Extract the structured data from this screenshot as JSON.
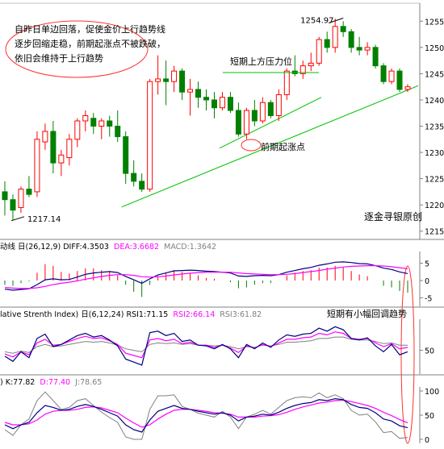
{
  "chart_data": {
    "type": "candlestick",
    "symbol_price_axis": {
      "ticks": [
        "1255.0",
        "1250.0",
        "1245.0",
        "1240.0",
        "1235.0",
        "1230.0",
        "1225.0",
        "1220.0",
        "1215.0"
      ],
      "ylim": [
        1214.5,
        1257.5
      ]
    },
    "candles": [
      {
        "o": 1222.5,
        "h": 1224.5,
        "l": 1218.0,
        "c": 1221.0
      },
      {
        "o": 1221.0,
        "h": 1222.0,
        "l": 1217.1,
        "c": 1219.0
      },
      {
        "o": 1219.5,
        "h": 1223.5,
        "l": 1218.5,
        "c": 1223.0
      },
      {
        "o": 1223.0,
        "h": 1225.5,
        "l": 1221.5,
        "c": 1222.0
      },
      {
        "o": 1222.5,
        "h": 1234.0,
        "l": 1221.5,
        "c": 1232.5
      },
      {
        "o": 1232.0,
        "h": 1235.5,
        "l": 1230.5,
        "c": 1234.0
      },
      {
        "o": 1234.0,
        "h": 1236.0,
        "l": 1226.0,
        "c": 1228.0
      },
      {
        "o": 1228.0,
        "h": 1230.5,
        "l": 1225.5,
        "c": 1229.5
      },
      {
        "o": 1229.0,
        "h": 1233.5,
        "l": 1227.5,
        "c": 1232.5
      },
      {
        "o": 1232.5,
        "h": 1236.5,
        "l": 1231.0,
        "c": 1236.0
      },
      {
        "o": 1236.0,
        "h": 1238.0,
        "l": 1234.0,
        "c": 1237.0
      },
      {
        "o": 1236.5,
        "h": 1237.5,
        "l": 1233.5,
        "c": 1235.0
      },
      {
        "o": 1235.0,
        "h": 1236.5,
        "l": 1232.5,
        "c": 1236.0
      },
      {
        "o": 1236.0,
        "h": 1237.0,
        "l": 1233.0,
        "c": 1235.0
      },
      {
        "o": 1235.0,
        "h": 1238.0,
        "l": 1232.0,
        "c": 1233.0
      },
      {
        "o": 1233.0,
        "h": 1234.0,
        "l": 1224.0,
        "c": 1226.0
      },
      {
        "o": 1226.0,
        "h": 1228.5,
        "l": 1223.5,
        "c": 1224.5
      },
      {
        "o": 1224.5,
        "h": 1226.0,
        "l": 1222.5,
        "c": 1223.0
      },
      {
        "o": 1223.0,
        "h": 1244.0,
        "l": 1222.5,
        "c": 1243.5
      },
      {
        "o": 1243.5,
        "h": 1248.5,
        "l": 1241.0,
        "c": 1244.0
      },
      {
        "o": 1244.0,
        "h": 1247.5,
        "l": 1239.0,
        "c": 1243.5
      },
      {
        "o": 1243.5,
        "h": 1246.5,
        "l": 1241.5,
        "c": 1245.5
      },
      {
        "o": 1245.5,
        "h": 1246.0,
        "l": 1240.0,
        "c": 1241.5
      },
      {
        "o": 1241.5,
        "h": 1244.0,
        "l": 1237.0,
        "c": 1242.0
      },
      {
        "o": 1242.0,
        "h": 1243.5,
        "l": 1238.5,
        "c": 1240.5
      },
      {
        "o": 1240.5,
        "h": 1242.0,
        "l": 1238.0,
        "c": 1240.0
      },
      {
        "o": 1240.0,
        "h": 1241.5,
        "l": 1236.5,
        "c": 1238.5
      },
      {
        "o": 1238.5,
        "h": 1241.5,
        "l": 1238.0,
        "c": 1240.5
      },
      {
        "o": 1240.5,
        "h": 1241.5,
        "l": 1237.5,
        "c": 1238.0
      },
      {
        "o": 1238.0,
        "h": 1239.5,
        "l": 1233.0,
        "c": 1233.5
      },
      {
        "o": 1233.5,
        "h": 1238.5,
        "l": 1232.5,
        "c": 1238.0
      },
      {
        "o": 1238.0,
        "h": 1240.0,
        "l": 1235.0,
        "c": 1236.0
      },
      {
        "o": 1236.0,
        "h": 1240.5,
        "l": 1235.5,
        "c": 1239.5
      },
      {
        "o": 1239.5,
        "h": 1240.0,
        "l": 1236.5,
        "c": 1237.0
      },
      {
        "o": 1237.0,
        "h": 1242.0,
        "l": 1236.0,
        "c": 1241.0
      },
      {
        "o": 1241.0,
        "h": 1246.0,
        "l": 1240.0,
        "c": 1245.5
      },
      {
        "o": 1245.5,
        "h": 1248.5,
        "l": 1244.5,
        "c": 1245.0
      },
      {
        "o": 1245.0,
        "h": 1247.5,
        "l": 1244.0,
        "c": 1246.5
      },
      {
        "o": 1246.5,
        "h": 1249.0,
        "l": 1245.5,
        "c": 1247.0
      },
      {
        "o": 1247.0,
        "h": 1252.0,
        "l": 1246.5,
        "c": 1251.5
      },
      {
        "o": 1251.5,
        "h": 1253.0,
        "l": 1249.0,
        "c": 1250.0
      },
      {
        "o": 1250.0,
        "h": 1255.5,
        "l": 1249.0,
        "c": 1254.0
      },
      {
        "o": 1254.0,
        "h": 1255.0,
        "l": 1252.0,
        "c": 1253.0
      },
      {
        "o": 1253.0,
        "h": 1253.5,
        "l": 1249.0,
        "c": 1250.0
      },
      {
        "o": 1250.0,
        "h": 1252.0,
        "l": 1248.5,
        "c": 1249.5
      },
      {
        "o": 1249.5,
        "h": 1251.0,
        "l": 1248.5,
        "c": 1250.0
      },
      {
        "o": 1250.0,
        "h": 1250.5,
        "l": 1246.0,
        "c": 1246.5
      },
      {
        "o": 1246.5,
        "h": 1247.0,
        "l": 1243.0,
        "c": 1243.5
      },
      {
        "o": 1243.5,
        "h": 1246.0,
        "l": 1243.0,
        "c": 1245.5
      },
      {
        "o": 1245.5,
        "h": 1246.0,
        "l": 1241.5,
        "c": 1242.0
      },
      {
        "o": 1242.0,
        "h": 1243.0,
        "l": 1241.5,
        "c": 1242.5
      }
    ],
    "price_labels": [
      {
        "text": "1217.14",
        "candle": 1,
        "value": 1217.14
      },
      {
        "text": "1254.97",
        "candle": 41,
        "value": 1254.97
      }
    ],
    "annotations": {
      "top_note": [
        "自昨日单边回落，促使金价上行趋势线",
        "逐步回缩走稳，前期起涨点不被跌破，",
        "依旧会维持于上行趋势"
      ],
      "resistance": "短期上方压力位",
      "support_point": "前期起涨点",
      "pullback_note": "短期有小幅回调趋势",
      "watermark": "逐金寻银原创"
    },
    "macd": {
      "header": "动线 日(26,12,9) DIFF:4.3503 DEA:3.6682 MACD:1.3642",
      "header_prefix": "动线 日(26,12,9) DIFF:4.3503",
      "header_dea": "DEA:3.6682",
      "header_macd": "MACD:1.3642",
      "ticks": [
        "5",
        "0",
        "-5"
      ],
      "ylim": [
        -7,
        7
      ],
      "diff": [
        -2.5,
        -2.8,
        -2.6,
        -2.4,
        -1.2,
        0.2,
        0.5,
        0.2,
        0.3,
        1.0,
        1.8,
        2.2,
        2.4,
        2.6,
        2.3,
        1.2,
        0.2,
        -0.8,
        0.5,
        1.6,
        2.2,
        2.8,
        2.9,
        3.0,
        2.9,
        2.7,
        2.6,
        2.4,
        2.2,
        1.3,
        1.2,
        1.4,
        1.5,
        1.4,
        1.7,
        2.4,
        2.9,
        3.4,
        3.8,
        4.4,
        4.8,
        5.3,
        5.4,
        5.2,
        4.9,
        4.8,
        4.3,
        3.6,
        3.2,
        2.5,
        2.0
      ],
      "dea": [
        -2.0,
        -2.2,
        -2.3,
        -2.3,
        -2.1,
        -1.7,
        -1.2,
        -0.8,
        -0.5,
        -0.1,
        0.4,
        0.8,
        1.2,
        1.5,
        1.7,
        1.7,
        1.5,
        1.1,
        1.0,
        1.1,
        1.3,
        1.6,
        1.9,
        2.1,
        2.3,
        2.4,
        2.4,
        2.4,
        2.4,
        2.2,
        2.0,
        1.9,
        1.8,
        1.7,
        1.7,
        1.8,
        2.0,
        2.3,
        2.6,
        2.9,
        3.3,
        3.6,
        3.9,
        4.1,
        4.2,
        4.3,
        4.3,
        4.2,
        4.0,
        3.7,
        3.4
      ],
      "hist": [
        -0.5,
        -0.6,
        -0.3,
        -0.1,
        0.9,
        1.9,
        1.7,
        1.0,
        0.8,
        1.1,
        1.4,
        1.4,
        1.2,
        1.1,
        0.6,
        -0.5,
        -1.3,
        -1.9,
        -0.5,
        0.5,
        0.9,
        1.2,
        1.0,
        0.9,
        0.6,
        0.3,
        0.2,
        0.0,
        -0.2,
        -0.9,
        -0.8,
        -0.5,
        -0.3,
        -0.3,
        0.0,
        0.6,
        0.9,
        1.1,
        1.2,
        1.5,
        1.5,
        1.7,
        1.5,
        1.1,
        0.7,
        0.5,
        0.0,
        -0.6,
        -0.8,
        -1.2,
        -1.4
      ]
    },
    "rsi": {
      "header": "lative Strenth Index) 日(6,12,24) RSI1:71.15 RSI2:66.14 RSI3:61.82",
      "header_prefix": "lative Strenth Index) 日(6,12,24) RSI1:71.15",
      "header_rsi2": "RSI2:66.14",
      "header_rsi3": "RSI3:61.82",
      "ticks": [
        "50"
      ],
      "ylim": [
        20,
        90
      ],
      "rsi1": [
        42,
        35,
        48,
        40,
        66,
        72,
        55,
        58,
        64,
        70,
        73,
        68,
        70,
        64,
        56,
        38,
        34,
        30,
        74,
        76,
        70,
        73,
        62,
        64,
        57,
        56,
        52,
        58,
        52,
        40,
        58,
        52,
        60,
        54,
        64,
        71,
        69,
        72,
        73,
        80,
        76,
        82,
        78,
        66,
        64,
        67,
        56,
        48,
        58,
        44,
        48
      ],
      "rsi2": [
        45,
        41,
        48,
        44,
        60,
        65,
        57,
        58,
        62,
        66,
        69,
        66,
        67,
        63,
        58,
        46,
        43,
        40,
        64,
        66,
        63,
        65,
        59,
        61,
        57,
        57,
        54,
        57,
        53,
        47,
        56,
        53,
        58,
        55,
        60,
        65,
        65,
        67,
        68,
        73,
        71,
        75,
        73,
        66,
        65,
        66,
        60,
        55,
        59,
        52,
        54
      ],
      "rsi3": [
        48,
        46,
        49,
        47,
        55,
        58,
        55,
        56,
        58,
        60,
        62,
        61,
        62,
        60,
        57,
        52,
        50,
        48,
        58,
        60,
        59,
        60,
        58,
        59,
        57,
        57,
        56,
        57,
        55,
        52,
        55,
        54,
        57,
        56,
        58,
        61,
        61,
        62,
        63,
        66,
        66,
        68,
        68,
        65,
        64,
        64,
        62,
        59,
        60,
        57,
        57
      ]
    },
    "kdj": {
      "header": ") K:77.82 D:77.40 J:78.65",
      "header_prefix": ") K:77.82",
      "header_d": "D:77.40",
      "header_j": "J:78.65",
      "ticks": [
        "100",
        "50",
        "0"
      ],
      "ylim": [
        -5,
        105
      ],
      "k": [
        30,
        22,
        30,
        35,
        55,
        70,
        66,
        60,
        62,
        68,
        72,
        68,
        62,
        55,
        48,
        30,
        20,
        15,
        40,
        58,
        64,
        70,
        64,
        62,
        58,
        55,
        52,
        55,
        50,
        38,
        46,
        48,
        52,
        50,
        56,
        64,
        70,
        74,
        76,
        82,
        80,
        84,
        82,
        72,
        66,
        64,
        55,
        42,
        38,
        28,
        24
      ],
      "d": [
        35,
        30,
        30,
        32,
        40,
        52,
        58,
        60,
        60,
        62,
        66,
        67,
        65,
        60,
        55,
        44,
        34,
        25,
        30,
        42,
        52,
        60,
        62,
        62,
        60,
        58,
        55,
        54,
        52,
        46,
        46,
        46,
        48,
        49,
        51,
        56,
        62,
        67,
        71,
        75,
        77,
        80,
        81,
        78,
        74,
        70,
        64,
        56,
        49,
        41,
        34
      ],
      "j": [
        20,
        8,
        30,
        42,
        80,
        98,
        80,
        62,
        66,
        80,
        84,
        70,
        56,
        45,
        35,
        5,
        0,
        0,
        62,
        90,
        90,
        92,
        68,
        62,
        54,
        50,
        46,
        58,
        46,
        22,
        46,
        52,
        60,
        52,
        66,
        80,
        86,
        88,
        86,
        96,
        86,
        92,
        84,
        60,
        50,
        52,
        36,
        14,
        16,
        2,
        4
      ]
    },
    "colors": {
      "up": "#ff0000",
      "down": "#008000",
      "trend": "#00c000",
      "circle": "#ff3030",
      "line1": "#000080",
      "line2": "#ff00ff",
      "line3": "#808080",
      "header_pink": "#ff00ff",
      "header_gray": "#808080"
    }
  }
}
